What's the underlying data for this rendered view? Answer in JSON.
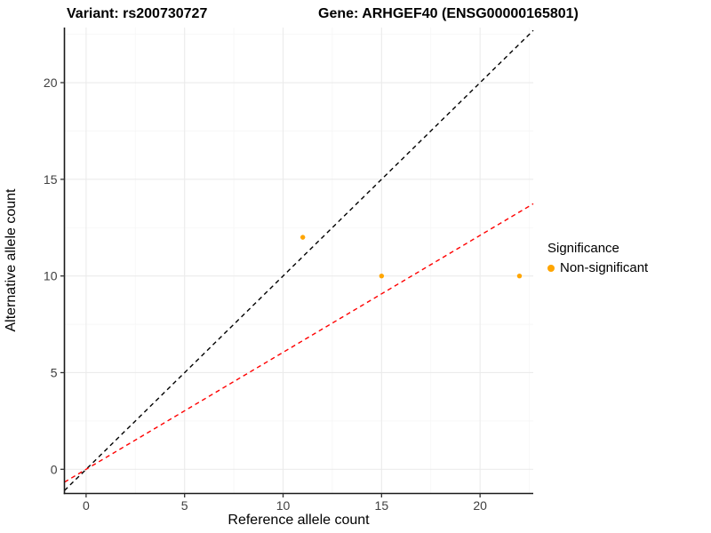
{
  "chart_data": {
    "type": "scatter",
    "title_left": "Variant: rs200730727",
    "title_right": "Gene: ARHGEF40 (ENSG00000165801)",
    "xlabel": "Reference allele count",
    "ylabel": "Alternative allele count",
    "xlim": [
      -1.1,
      22.7
    ],
    "ylim": [
      -1.25,
      22.85
    ],
    "x_major_ticks": [
      0,
      5,
      10,
      15,
      20
    ],
    "y_major_ticks": [
      0,
      5,
      10,
      15,
      20
    ],
    "x_minor_ticks": [
      2.5,
      7.5,
      12.5,
      17.5,
      22.5
    ],
    "y_minor_ticks": [
      2.5,
      7.5,
      12.5,
      17.5,
      22.5
    ],
    "grid": true,
    "legend_position": "right",
    "series": [
      {
        "name": "Non-significant",
        "color": "#FFA500",
        "points": [
          {
            "x": 11,
            "y": 12
          },
          {
            "x": 15,
            "y": 10
          },
          {
            "x": 22,
            "y": 10
          }
        ]
      }
    ],
    "lines": [
      {
        "name": "identity-line",
        "slope": 1,
        "intercept": 0,
        "color": "#000000",
        "style": "dashed"
      },
      {
        "name": "fit-line",
        "slope": 0.605,
        "intercept": 0,
        "color": "#FF0000",
        "style": "dashed"
      }
    ],
    "legend": {
      "title": "Significance",
      "items": [
        {
          "label": "Non-significant",
          "color": "#FFA500",
          "marker": "circle"
        }
      ]
    },
    "colors": {
      "grid_major": "#EBEBEB",
      "grid_minor": "#F6F6F6",
      "axis_line": "#1A1A1A",
      "tick_mark": "#333333",
      "tick_label": "#404040"
    }
  }
}
